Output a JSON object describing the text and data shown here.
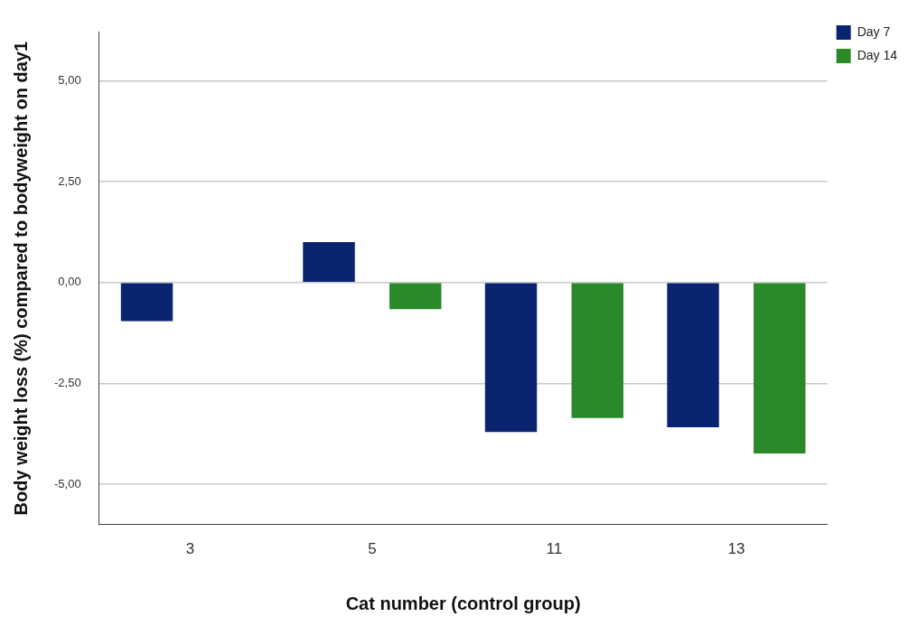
{
  "chart_data": {
    "type": "bar",
    "xlabel": "Cat number (control group)",
    "ylabel": "Body weight loss (%) compared to bodyweight on day1",
    "categories": [
      "3",
      "5",
      "11",
      "13"
    ],
    "series": [
      {
        "name": "Day 7",
        "color": "#0a2470",
        "values": [
          -0.96,
          1.0,
          -3.71,
          -3.59
        ]
      },
      {
        "name": "Day 14",
        "color": "#2a8a2a",
        "values": [
          null,
          -0.66,
          -3.36,
          -4.24
        ]
      }
    ],
    "ylim": [
      -6,
      6.2
    ],
    "yticks": [
      {
        "value": -5,
        "label": "-5,00"
      },
      {
        "value": -2.5,
        "label": "-2,50"
      },
      {
        "value": 0,
        "label": "0,00"
      },
      {
        "value": 2.5,
        "label": "2,50"
      },
      {
        "value": 5,
        "label": "5,00"
      }
    ],
    "grid": "y",
    "legend": "top right"
  }
}
